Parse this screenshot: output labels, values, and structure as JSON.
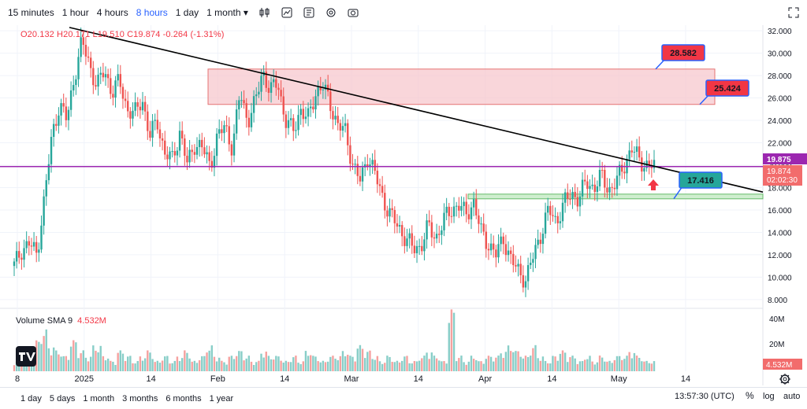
{
  "toolbar": {
    "timeframes": [
      "15 minutes",
      "1 hour",
      "4 hours",
      "8 hours",
      "1 day",
      "1 month"
    ],
    "active_timeframe": "8 hours",
    "dropdown_glyph": "▾",
    "icons": [
      "indicators-icon",
      "chart-type-icon",
      "compare-icon",
      "settings-icon",
      "screenshot-icon",
      "fullscreen-icon"
    ]
  },
  "legend": {
    "ohlc_text": "O20.132  H20.171  L19.510  C19.874  -0.264  (-1.31%)"
  },
  "volume_panel": {
    "label": "Volume SMA 9",
    "value": "4.532M",
    "axis_ticks": [
      "40M",
      "20M"
    ],
    "last_badge": "4.532M"
  },
  "bottom": {
    "ranges": [
      "1 day",
      "5 days",
      "1 month",
      "3 months",
      "6 months",
      "1 year"
    ],
    "clock": "13:57:30 (UTC)",
    "percent_label": "%",
    "log_label": "log",
    "auto_label": "auto"
  },
  "colors": {
    "up": "#26a69a",
    "down": "#ef5350",
    "resistance_zone": "#f7c5cb",
    "support_zone": "#cfeecf",
    "trendline": "#000000",
    "horizontal_line": "#9c27b0",
    "accent": "#2962ff"
  },
  "chart_data": {
    "type": "candlestick",
    "x_ticks": [
      "8",
      "2025",
      "14",
      "Feb",
      "14",
      "Mar",
      "14",
      "Apr",
      "14",
      "May",
      "14"
    ],
    "y_ticks": [
      32.0,
      30.0,
      28.0,
      26.0,
      24.0,
      22.0,
      20.0,
      18.0,
      16.0,
      14.0,
      12.0,
      10.0,
      8.0
    ],
    "ylim": [
      7.5,
      32.5
    ],
    "y_tick_labels": [
      "32.000",
      "30.000",
      "28.000",
      "26.000",
      "24.000",
      "22.000",
      "20.000",
      "18.000",
      "16.000",
      "14.000",
      "12.000",
      "10.000",
      "8.000"
    ],
    "price_badges": {
      "high": "19.875",
      "last": "19.874",
      "countdown": "02:02:30"
    },
    "resistance_zone": {
      "low": 25.424,
      "high": 28.582
    },
    "support_zone": {
      "low": 17.0,
      "high": 17.416
    },
    "horizontal_level": 19.874,
    "trendline": {
      "start_value": 32.3,
      "end_value": 17.6
    },
    "callouts": [
      {
        "label": "28.582",
        "value": 28.582,
        "color": "#f23645"
      },
      {
        "label": "25.424",
        "value": 25.424,
        "color": "#f23645"
      },
      {
        "label": "17.416",
        "value": 17.416,
        "color": "#26a69a"
      }
    ],
    "price_path": [
      11.0,
      12.5,
      13.0,
      12.0,
      17.0,
      22.5,
      25.5,
      24.0,
      28.0,
      31.0,
      29.0,
      27.0,
      28.5,
      26.5,
      27.5,
      25.0,
      24.5,
      26.0,
      22.5,
      24.0,
      21.0,
      20.5,
      23.0,
      20.0,
      22.0,
      21.5,
      20.0,
      22.5,
      23.5,
      21.5,
      26.5,
      24.0,
      25.5,
      28.5,
      26.5,
      27.5,
      24.0,
      23.0,
      25.0,
      24.0,
      26.5,
      27.0,
      25.5,
      23.5,
      23.0,
      20.0,
      18.5,
      21.0,
      19.0,
      17.0,
      15.5,
      14.5,
      13.5,
      12.5,
      12.8,
      14.5,
      13.5,
      15.0,
      16.0,
      16.5,
      15.5,
      16.8,
      14.0,
      13.0,
      12.0,
      13.5,
      11.5,
      10.5,
      9.8,
      12.0,
      14.0,
      16.0,
      15.0,
      16.5,
      17.5,
      17.0,
      18.5,
      18.0,
      19.0,
      17.8,
      18.5,
      20.0,
      21.5,
      20.5,
      20.0,
      19.87
    ],
    "volume_path": [
      2,
      4,
      3,
      6,
      8,
      5,
      4,
      3,
      6,
      4,
      3,
      5,
      3,
      2,
      4,
      3,
      2,
      3,
      4,
      2,
      3,
      2,
      3,
      4,
      2,
      3,
      5,
      3,
      2,
      3,
      4,
      3,
      2,
      4,
      3,
      3,
      2,
      3,
      2,
      4,
      3,
      2,
      3,
      3,
      4,
      3,
      5,
      4,
      3,
      2,
      3,
      2,
      3,
      2,
      3,
      4,
      3,
      2,
      12,
      3,
      2,
      3,
      2,
      3,
      3,
      4,
      5,
      4,
      3,
      5,
      3,
      2,
      3,
      4,
      3,
      2,
      3,
      2,
      3,
      2,
      3,
      3,
      4,
      3,
      2,
      2
    ]
  }
}
